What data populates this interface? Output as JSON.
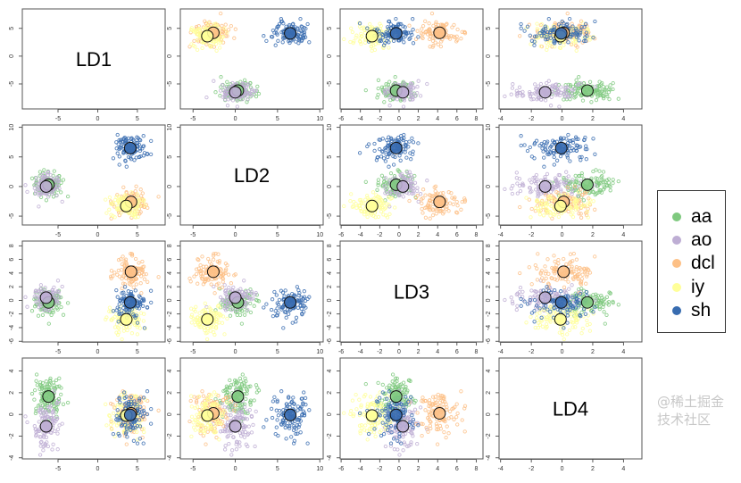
{
  "chart_data": {
    "type": "scatter",
    "layout": "scatterplot-matrix",
    "variables": [
      {
        "name": "LD1",
        "range": [
          -9.5,
          8.5
        ],
        "ticks": [
          -5,
          0,
          5
        ]
      },
      {
        "name": "LD2",
        "range": [
          -6.5,
          10.4
        ],
        "ticks": [
          -5,
          0,
          5,
          10
        ]
      },
      {
        "name": "LD3",
        "range": [
          -6.1,
          8.7
        ],
        "ticks": [
          -6,
          -4,
          -2,
          0,
          2,
          4,
          6,
          8
        ]
      },
      {
        "name": "LD4",
        "range": [
          -4.1,
          5.2
        ],
        "ticks": [
          -4,
          -2,
          0,
          2,
          4
        ]
      }
    ],
    "series": [
      {
        "name": "aa",
        "symbol": "a",
        "color": "#7fc97f",
        "mean": [
          -6.2,
          0.3,
          -0.3,
          1.65
        ],
        "sd": [
          0.9,
          1.0,
          0.9,
          1.0
        ]
      },
      {
        "name": "ao",
        "symbol": "o",
        "color": "#beaed4",
        "mean": [
          -6.5,
          0.0,
          0.4,
          -1.1
        ],
        "sd": [
          0.9,
          1.0,
          0.9,
          1.0
        ]
      },
      {
        "name": "dcl",
        "symbol": "d",
        "color": "#fdc086",
        "mean": [
          4.2,
          -2.6,
          4.2,
          0.1
        ],
        "sd": [
          1.1,
          1.1,
          1.1,
          1.0
        ]
      },
      {
        "name": "iy",
        "symbol": "i",
        "color": "#ffff99",
        "mean": [
          3.6,
          -3.3,
          -2.8,
          -0.1
        ],
        "sd": [
          1.0,
          1.0,
          1.0,
          1.0
        ]
      },
      {
        "name": "sh",
        "symbol": "s",
        "color": "#386cb0",
        "mean": [
          4.1,
          6.5,
          -0.3,
          -0.05
        ],
        "sd": [
          1.0,
          1.0,
          1.0,
          1.0
        ]
      }
    ],
    "grid": false,
    "legend_position": "right",
    "group_means_marked": true
  },
  "legend": {
    "items": [
      {
        "label": "aa",
        "color": "#7fc97f"
      },
      {
        "label": "ao",
        "color": "#beaed4"
      },
      {
        "label": "dcl",
        "color": "#fdc086"
      },
      {
        "label": "iy",
        "color": "#ffff99"
      },
      {
        "label": "sh",
        "color": "#386cb0"
      }
    ]
  },
  "watermark": "@稀土掘金技术社区"
}
